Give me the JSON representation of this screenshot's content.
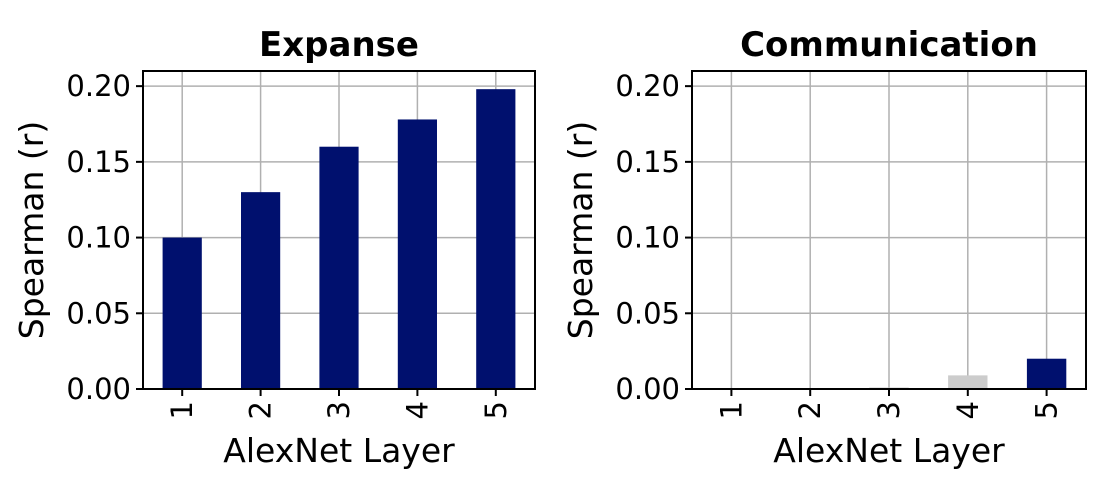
{
  "chart_data": [
    {
      "type": "bar",
      "title": "Expanse",
      "xlabel": "AlexNet Layer",
      "ylabel": "Spearman (r)",
      "categories": [
        "1",
        "2",
        "3",
        "4",
        "5"
      ],
      "values": [
        0.1,
        0.13,
        0.16,
        0.178,
        0.198
      ],
      "bar_colors": [
        "#00106e",
        "#00106e",
        "#00106e",
        "#00106e",
        "#00106e"
      ],
      "ylim": [
        0,
        0.21
      ],
      "yticks": [
        "0.00",
        "0.05",
        "0.10",
        "0.15",
        "0.20"
      ],
      "grid": true
    },
    {
      "type": "bar",
      "title": "Communication",
      "xlabel": "AlexNet Layer",
      "ylabel": "Spearman (r)",
      "categories": [
        "1",
        "2",
        "3",
        "4",
        "5"
      ],
      "values": [
        0.0,
        0.0,
        0.001,
        0.009,
        0.02
      ],
      "bar_colors": [
        "#cccccc",
        "#cccccc",
        "#cccccc",
        "#cccccc",
        "#00106e"
      ],
      "ylim": [
        0,
        0.21
      ],
      "yticks": [
        "0.00",
        "0.05",
        "0.10",
        "0.15",
        "0.20"
      ],
      "grid": true
    }
  ]
}
